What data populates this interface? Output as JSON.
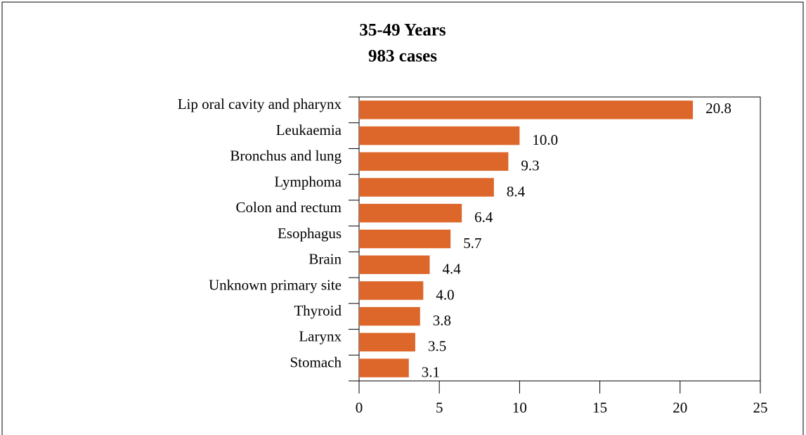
{
  "chart_data": {
    "type": "bar",
    "orientation": "horizontal",
    "title": [
      "35-49 Years",
      "983 cases"
    ],
    "categories": [
      "Lip oral cavity and pharynx",
      "Leukaemia",
      "Bronchus and lung",
      "Lymphoma",
      "Colon and rectum",
      "Esophagus",
      "Brain",
      "Unknown primary site",
      "Thyroid",
      "Larynx",
      "Stomach"
    ],
    "values": [
      20.8,
      10.0,
      9.3,
      8.4,
      6.4,
      5.7,
      4.4,
      4.0,
      3.8,
      3.5,
      3.1
    ],
    "value_labels": [
      "20.8",
      "10.0",
      "9.3",
      "8.4",
      "6.4",
      "5.7",
      "4.4",
      "4.0",
      "3.8",
      "3.5",
      "3.1"
    ],
    "color": "#dd672b",
    "xlim": [
      0,
      25
    ],
    "xticks": [
      0,
      5,
      10,
      15,
      20,
      25
    ],
    "grid": false
  }
}
